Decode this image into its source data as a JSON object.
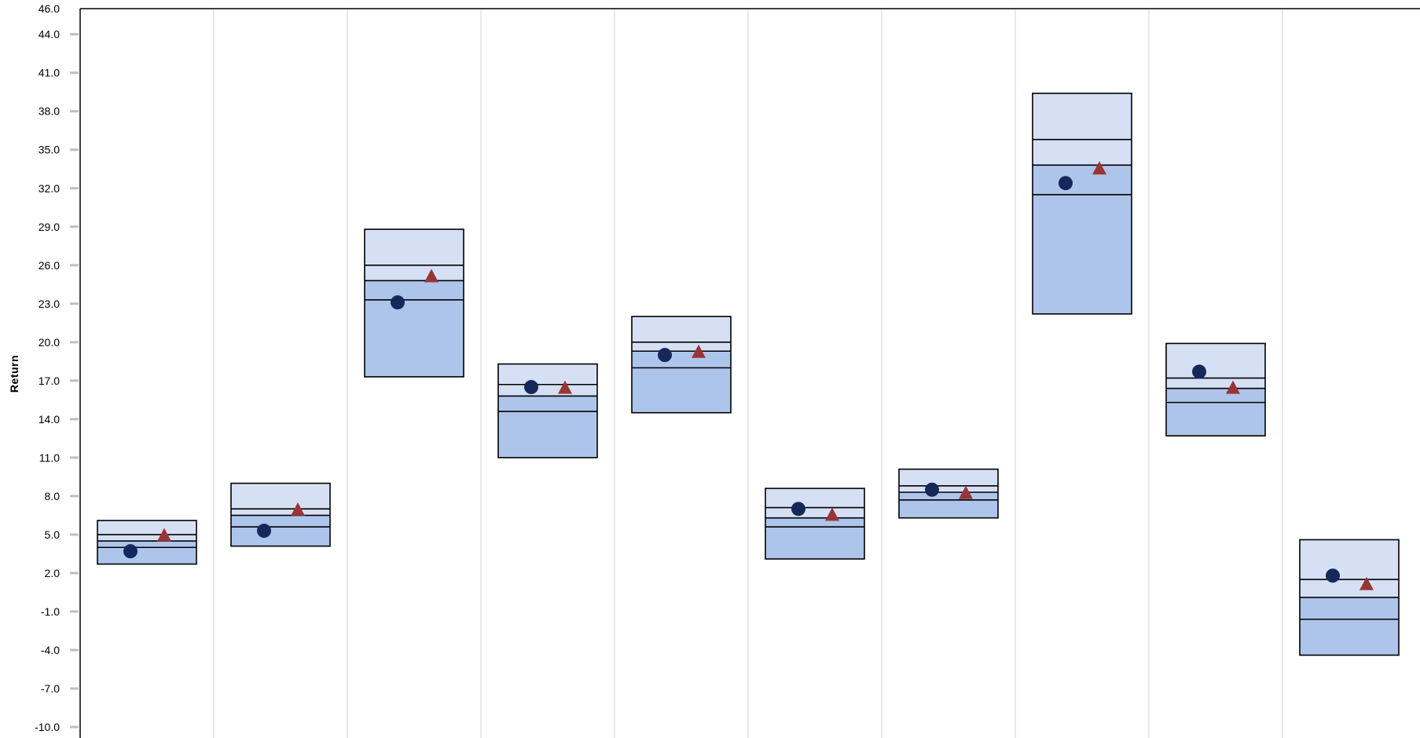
{
  "chart_data": {
    "type": "box",
    "ylabel": "Return",
    "ylim": [
      -10,
      46
    ],
    "yticks": [
      "46.0",
      "44.0",
      "41.0",
      "38.0",
      "35.0",
      "32.0",
      "29.0",
      "26.0",
      "23.0",
      "20.0",
      "17.0",
      "14.0",
      "11.0",
      "8.0",
      "5.0",
      "2.0",
      "-1.0",
      "-4.0",
      "-7.0",
      "-10.0"
    ],
    "grid": true,
    "colors": {
      "outer_band": "#d5e0f5",
      "inner_band": "#aec5eb",
      "circle": "#14285a",
      "triangle": "#9b3434",
      "box_border": "#000000",
      "grid": "#d9d9d9"
    },
    "series": [
      {
        "name": "",
        "marker": "circle",
        "values": [
          3.7,
          5.3,
          23.1,
          16.5,
          19.0,
          7.0,
          8.5,
          32.4,
          17.7,
          1.8
        ]
      },
      {
        "name": "",
        "marker": "triangle",
        "values": [
          4.9,
          6.9,
          25.1,
          16.4,
          19.2,
          6.5,
          8.2,
          33.5,
          16.4,
          1.1
        ]
      }
    ],
    "boxes": [
      {
        "p95": 6.1,
        "p75": 5.0,
        "p50": 4.5,
        "p25": 4.0,
        "p5": 2.7
      },
      {
        "p95": 9.0,
        "p75": 7.0,
        "p50": 6.5,
        "p25": 5.6,
        "p5": 4.1
      },
      {
        "p95": 28.8,
        "p75": 26.0,
        "p50": 24.8,
        "p25": 23.3,
        "p5": 17.3
      },
      {
        "p95": 18.3,
        "p75": 16.7,
        "p50": 15.8,
        "p25": 14.6,
        "p5": 11.0
      },
      {
        "p95": 22.0,
        "p75": 20.0,
        "p50": 19.3,
        "p25": 18.0,
        "p5": 14.5
      },
      {
        "p95": 8.6,
        "p75": 7.1,
        "p50": 6.3,
        "p25": 5.6,
        "p5": 3.1
      },
      {
        "p95": 10.1,
        "p75": 8.8,
        "p50": 8.3,
        "p25": 7.7,
        "p5": 6.3
      },
      {
        "p95": 39.4,
        "p75": 35.8,
        "p50": 33.8,
        "p25": 31.5,
        "p5": 22.2
      },
      {
        "p95": 19.9,
        "p75": 17.2,
        "p50": 16.4,
        "p25": 15.3,
        "p5": 12.7
      },
      {
        "p95": 4.6,
        "p75": 1.5,
        "p50": 0.1,
        "p25": -1.6,
        "p5": -4.4
      }
    ]
  }
}
